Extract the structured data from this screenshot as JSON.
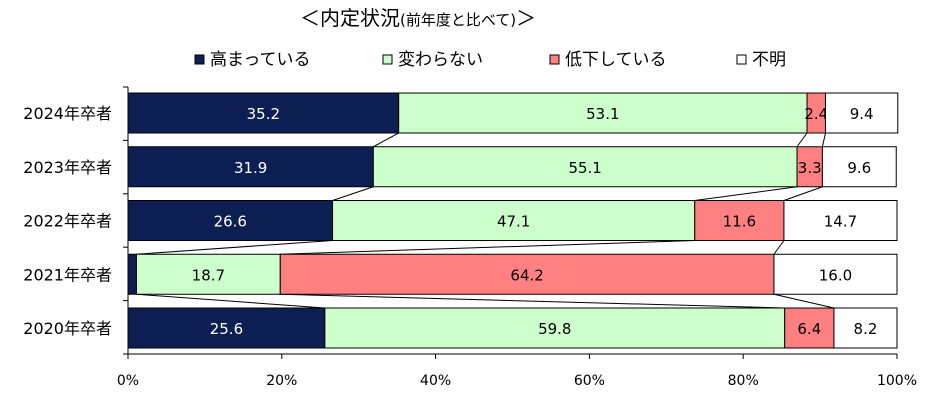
{
  "chart_data": {
    "type": "bar",
    "orientation": "horizontal",
    "stacked": "percent",
    "title": "＜内定状況",
    "title_sub": "(前年度と比べて)",
    "title_close": "＞",
    "categories": [
      "2024年卒者",
      "2023年卒者",
      "2022年卒者",
      "2021年卒者",
      "2020年卒者"
    ],
    "series": [
      {
        "name": "高まっている",
        "values": [
          35.2,
          31.9,
          26.6,
          1.1,
          25.6
        ],
        "color": "#0d1f52",
        "label_color": "#ffffff"
      },
      {
        "name": "変わらない",
        "values": [
          53.1,
          55.1,
          47.1,
          18.7,
          59.8
        ],
        "color": "#ccffcc",
        "label_color": "#000000"
      },
      {
        "name": "低下している",
        "values": [
          2.4,
          3.3,
          11.6,
          64.2,
          6.4
        ],
        "color": "#ff8080",
        "label_color": "#000000"
      },
      {
        "name": "不明",
        "values": [
          9.4,
          9.6,
          14.7,
          16.0,
          8.2
        ],
        "color": "#ffffff",
        "label_color": "#000000"
      }
    ],
    "value_labels": [
      [
        "35.2",
        "31.9",
        "26.6",
        "1.1",
        "25.6"
      ],
      [
        "53.1",
        "55.1",
        "47.1",
        "18.7",
        "59.8"
      ],
      [
        "2.4",
        "3.3",
        "11.6",
        "64.2",
        "6.4"
      ],
      [
        "9.4",
        "9.6",
        "14.7",
        "16.0",
        "8.2"
      ]
    ],
    "x_ticks": [
      "0%",
      "20%",
      "40%",
      "60%",
      "80%",
      "100%"
    ],
    "xlim": [
      0,
      100
    ],
    "legend_position": "top",
    "series_lines": true,
    "grid": false
  }
}
